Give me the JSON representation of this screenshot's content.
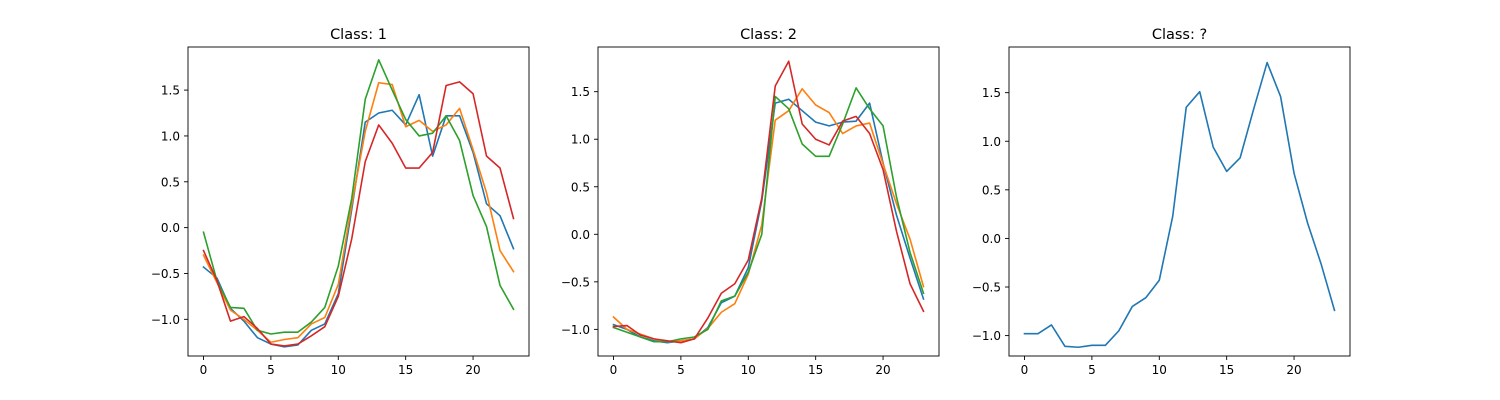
{
  "chart_data": [
    {
      "type": "line",
      "title": "Class: 1",
      "xlabel": "",
      "ylabel": "",
      "xlim": [
        -1.15,
        24.15
      ],
      "ylim": [
        -1.4,
        1.97
      ],
      "xticks": [
        0,
        5,
        10,
        15,
        20
      ],
      "yticks": [
        -1.0,
        -0.5,
        0.0,
        0.5,
        1.0,
        1.5
      ],
      "ytick_labels": [
        "−1.0",
        "−0.5",
        "0.0",
        "0.5",
        "1.0",
        "1.5"
      ],
      "grid": false,
      "x": [
        0,
        1,
        2,
        3,
        4,
        5,
        6,
        7,
        8,
        9,
        10,
        11,
        12,
        13,
        14,
        15,
        16,
        17,
        18,
        19,
        20,
        21,
        22,
        23
      ],
      "series": [
        {
          "color": "#1f77b4",
          "values": [
            -0.43,
            -0.55,
            -0.88,
            -1.02,
            -1.2,
            -1.27,
            -1.3,
            -1.28,
            -1.12,
            -1.05,
            -0.72,
            0.2,
            1.15,
            1.25,
            1.28,
            1.12,
            1.45,
            0.78,
            1.22,
            1.22,
            0.82,
            0.26,
            0.13,
            -0.23
          ]
        },
        {
          "color": "#ff7f0e",
          "values": [
            -0.3,
            -0.6,
            -0.9,
            -1.0,
            -1.12,
            -1.25,
            -1.22,
            -1.2,
            -1.05,
            -0.98,
            -0.62,
            0.25,
            1.05,
            1.58,
            1.56,
            1.1,
            1.17,
            1.05,
            1.12,
            1.3,
            0.85,
            0.38,
            -0.25,
            -0.48
          ]
        },
        {
          "color": "#2ca02c",
          "values": [
            -0.05,
            -0.58,
            -0.87,
            -0.88,
            -1.12,
            -1.16,
            -1.14,
            -1.14,
            -1.03,
            -0.87,
            -0.42,
            0.32,
            1.4,
            1.83,
            1.5,
            1.18,
            1.0,
            1.03,
            1.22,
            0.95,
            0.35,
            0.01,
            -0.63,
            -0.89
          ]
        },
        {
          "color": "#d62728",
          "values": [
            -0.25,
            -0.58,
            -1.02,
            -0.97,
            -1.1,
            -1.27,
            -1.29,
            -1.27,
            -1.18,
            -1.08,
            -0.75,
            -0.12,
            0.72,
            1.12,
            0.92,
            0.65,
            0.65,
            0.82,
            1.55,
            1.59,
            1.46,
            0.78,
            0.65,
            0.1
          ]
        }
      ]
    },
    {
      "type": "line",
      "title": "Class: 2",
      "xlabel": "",
      "ylabel": "",
      "xlim": [
        -1.15,
        24.15
      ],
      "ylim": [
        -1.28,
        1.97
      ],
      "xticks": [
        0,
        5,
        10,
        15,
        20
      ],
      "yticks": [
        -1.0,
        -0.5,
        0.0,
        0.5,
        1.0,
        1.5
      ],
      "ytick_labels": [
        "−1.0",
        "−0.5",
        "0.0",
        "0.5",
        "1.0",
        "1.5"
      ],
      "grid": false,
      "x": [
        0,
        1,
        2,
        3,
        4,
        5,
        6,
        7,
        8,
        9,
        10,
        11,
        12,
        13,
        14,
        15,
        16,
        17,
        18,
        19,
        20,
        21,
        22,
        23
      ],
      "series": [
        {
          "color": "#1f77b4",
          "values": [
            -0.95,
            -1.0,
            -1.08,
            -1.12,
            -1.14,
            -1.12,
            -1.1,
            -0.98,
            -0.72,
            -0.65,
            -0.35,
            0.35,
            1.38,
            1.42,
            1.3,
            1.18,
            1.14,
            1.18,
            1.19,
            1.38,
            0.75,
            0.2,
            -0.25,
            -0.68
          ]
        },
        {
          "color": "#ff7f0e",
          "values": [
            -0.87,
            -1.0,
            -1.05,
            -1.1,
            -1.13,
            -1.12,
            -1.1,
            -0.99,
            -0.82,
            -0.73,
            -0.42,
            0.1,
            1.2,
            1.3,
            1.53,
            1.36,
            1.28,
            1.06,
            1.14,
            1.17,
            0.74,
            0.32,
            -0.05,
            -0.55
          ]
        },
        {
          "color": "#2ca02c",
          "values": [
            -0.98,
            -1.03,
            -1.08,
            -1.13,
            -1.13,
            -1.1,
            -1.08,
            -1.0,
            -0.7,
            -0.65,
            -0.4,
            0.0,
            1.45,
            1.32,
            0.95,
            0.82,
            0.82,
            1.16,
            1.54,
            1.32,
            1.14,
            0.39,
            -0.19,
            -0.62
          ]
        },
        {
          "color": "#d62728",
          "values": [
            -0.97,
            -0.96,
            -1.06,
            -1.1,
            -1.12,
            -1.14,
            -1.1,
            -0.88,
            -0.62,
            -0.52,
            -0.27,
            0.38,
            1.56,
            1.82,
            1.16,
            1.0,
            0.94,
            1.19,
            1.24,
            1.06,
            0.68,
            0.03,
            -0.52,
            -0.81
          ]
        }
      ]
    },
    {
      "type": "line",
      "title": "Class: ?",
      "xlabel": "",
      "ylabel": "",
      "xlim": [
        -1.15,
        24.15
      ],
      "ylim": [
        -1.21,
        1.97
      ],
      "xticks": [
        0,
        5,
        10,
        15,
        20
      ],
      "yticks": [
        -1.0,
        -0.5,
        0.0,
        0.5,
        1.0,
        1.5
      ],
      "ytick_labels": [
        "−1.0",
        "−0.5",
        "0.0",
        "0.5",
        "1.0",
        "1.5"
      ],
      "grid": false,
      "x": [
        0,
        1,
        2,
        3,
        4,
        5,
        6,
        7,
        8,
        9,
        10,
        11,
        12,
        13,
        14,
        15,
        16,
        17,
        18,
        19,
        20,
        21,
        22,
        23
      ],
      "series": [
        {
          "color": "#1f77b4",
          "values": [
            -0.98,
            -0.98,
            -0.89,
            -1.11,
            -1.12,
            -1.1,
            -1.1,
            -0.95,
            -0.7,
            -0.61,
            -0.43,
            0.23,
            1.35,
            1.51,
            0.94,
            0.69,
            0.83,
            1.33,
            1.81,
            1.46,
            0.67,
            0.16,
            -0.26,
            -0.74
          ]
        }
      ]
    }
  ]
}
